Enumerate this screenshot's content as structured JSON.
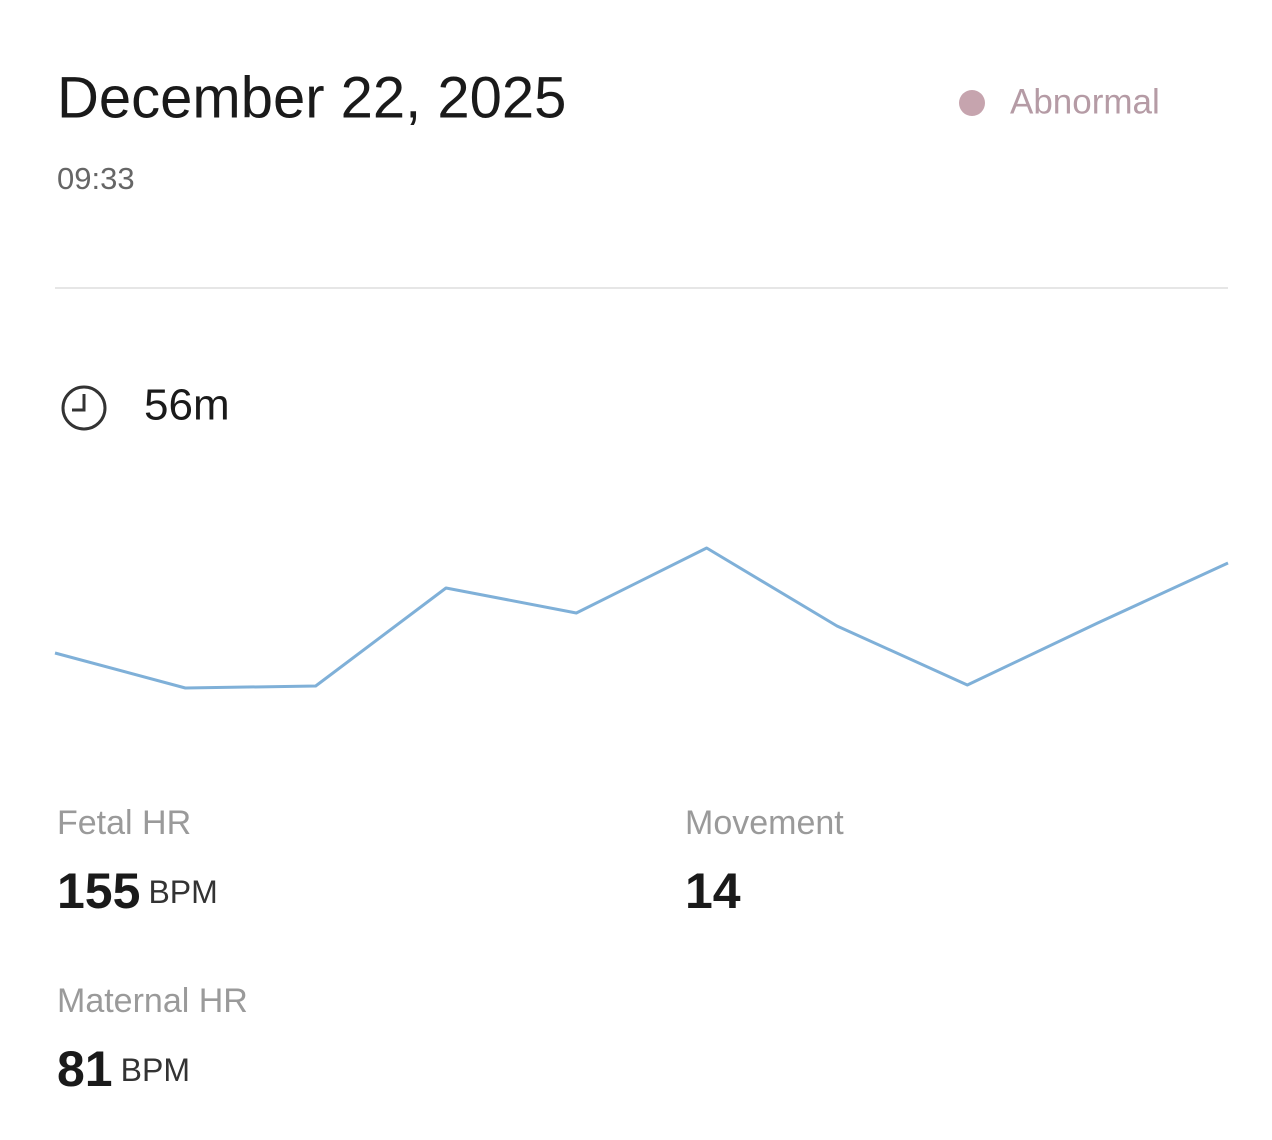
{
  "header": {
    "date": "December 22, 2025",
    "time": "09:33",
    "status": "Abnormal"
  },
  "duration": "56m",
  "sparkline": {
    "values": [
      47,
      12,
      14,
      112,
      87,
      152,
      74,
      15,
      77,
      137
    ],
    "ylim": [
      0,
      200
    ],
    "color": "#7fb0d8"
  },
  "stats": [
    {
      "label": "Fetal HR",
      "value": 155,
      "unit": "BPM"
    },
    {
      "label": "Movement",
      "value": 14
    },
    {
      "label": "Maternal HR",
      "value": 81,
      "unit": "BPM"
    }
  ]
}
